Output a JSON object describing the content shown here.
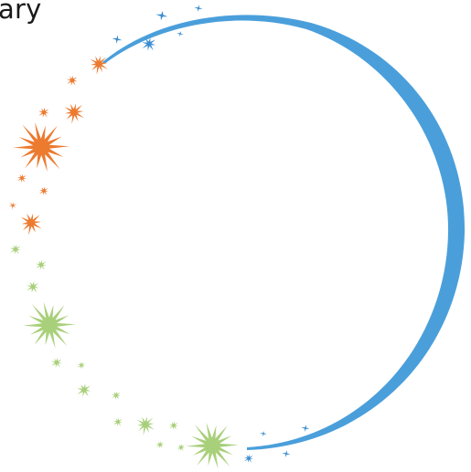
{
  "header": {
    "partial_text": "ary"
  },
  "colors": {
    "ring": "#4a9fdb",
    "blue_star": "#3d8ed0",
    "orange_star": "#ec7a2f",
    "green_star": "#a8d07a",
    "text": "#1a1a1a",
    "background": "#ffffff"
  },
  "decoration": {
    "icon": "sparkle-ring-icon",
    "groups": [
      "blue",
      "orange",
      "green",
      "blue"
    ]
  }
}
